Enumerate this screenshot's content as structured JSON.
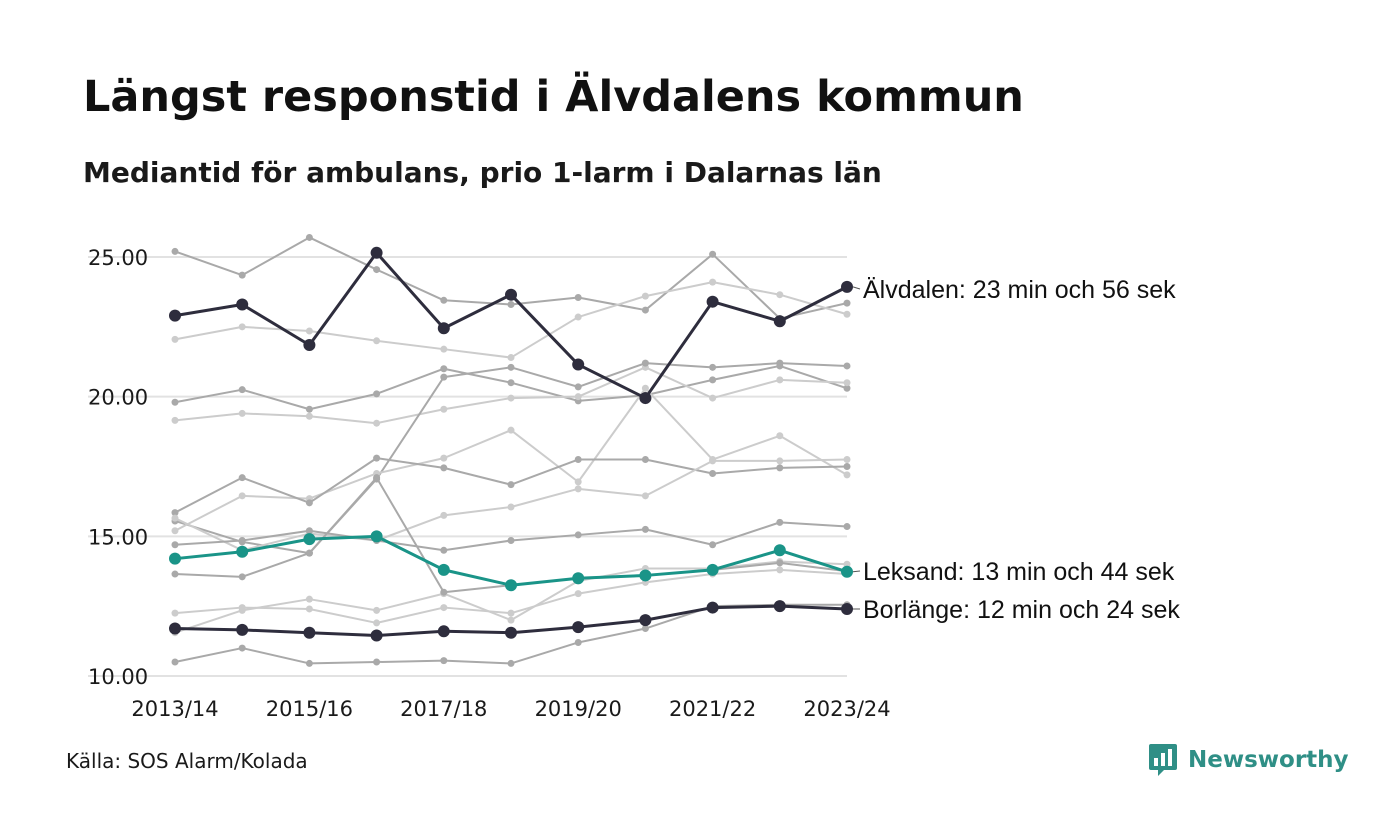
{
  "header": {
    "title": "Längst responstid i Älvdalens kommun",
    "subtitle": "Mediantid för ambulans, prio 1-larm i Dalarnas län"
  },
  "footer": {
    "source": "Källa: SOS Alarm/Kolada",
    "brand": "Newsworthy",
    "brand_icon": "newsworthy-chart-bubble-icon"
  },
  "colors": {
    "highlight_dark": "#2e2d3d",
    "highlight_teal": "#1a9488",
    "background_dark": "#a9a9a9",
    "background_light": "#cccccc",
    "gridline": "#e2e2e2",
    "brand": "#2f8f86"
  },
  "chart_data": {
    "type": "line",
    "x": [
      "2013/14",
      "2014/15",
      "2015/16",
      "2016/17",
      "2017/18",
      "2018/19",
      "2019/20",
      "2020/21",
      "2021/22",
      "2022/23",
      "2023/24"
    ],
    "x_tick_labels": [
      "2013/14",
      "2015/16",
      "2017/18",
      "2019/20",
      "2021/22",
      "2023/24"
    ],
    "y_tick_labels": [
      "10.00",
      "15.00",
      "20.00",
      "25.00"
    ],
    "ylim": [
      10,
      25.6
    ],
    "grid": true,
    "highlighted": [
      {
        "name": "Älvdalen",
        "label": "Älvdalen: 23 min och 56 sek",
        "color": "#2e2d3d",
        "values": [
          22.9,
          23.3,
          21.85,
          25.15,
          22.45,
          23.65,
          21.15,
          19.95,
          23.4,
          22.7,
          23.93
        ]
      },
      {
        "name": "Leksand",
        "label": "Leksand: 13 min och 44 sek",
        "color": "#1a9488",
        "values": [
          14.2,
          14.45,
          14.9,
          15.0,
          13.8,
          13.25,
          13.5,
          13.6,
          13.8,
          14.5,
          13.73
        ]
      },
      {
        "name": "Borlänge",
        "label": "Borlänge: 12 min och 24 sek",
        "color": "#2e2d3d",
        "values": [
          11.7,
          11.65,
          11.55,
          11.45,
          11.6,
          11.55,
          11.75,
          12.0,
          12.45,
          12.5,
          12.4
        ]
      }
    ],
    "other_series": [
      {
        "color": "#a9a9a9",
        "values": [
          25.2,
          24.35,
          25.7,
          24.55,
          23.45,
          23.3,
          23.55,
          23.1,
          25.1,
          22.8,
          23.35
        ]
      },
      {
        "color": "#cccccc",
        "values": [
          22.05,
          22.5,
          22.35,
          22.0,
          21.7,
          21.4,
          22.85,
          23.6,
          24.1,
          23.65,
          22.95
        ]
      },
      {
        "color": "#a9a9a9",
        "values": [
          19.8,
          20.25,
          19.55,
          20.1,
          21.0,
          20.5,
          19.85,
          20.05,
          20.6,
          21.1,
          20.3
        ]
      },
      {
        "color": "#cccccc",
        "values": [
          19.15,
          19.4,
          19.3,
          19.05,
          19.55,
          19.95,
          20.0,
          21.05,
          19.95,
          20.6,
          20.5
        ]
      },
      {
        "color": "#a9a9a9",
        "values": [
          15.55,
          14.8,
          14.4,
          17.05,
          20.7,
          21.05,
          20.35,
          21.2,
          21.05,
          21.2,
          21.1
        ]
      },
      {
        "color": "#cccccc",
        "values": [
          15.2,
          16.45,
          16.35,
          17.25,
          17.8,
          18.8,
          16.95,
          20.3,
          17.75,
          18.6,
          17.2
        ]
      },
      {
        "color": "#a9a9a9",
        "values": [
          15.85,
          17.1,
          16.2,
          17.8,
          17.45,
          16.85,
          17.75,
          17.75,
          17.25,
          17.45,
          17.5
        ]
      },
      {
        "color": "#cccccc",
        "values": [
          15.65,
          14.5,
          15.1,
          14.85,
          15.75,
          16.05,
          16.7,
          16.45,
          17.7,
          17.7,
          17.75
        ]
      },
      {
        "color": "#a9a9a9",
        "values": [
          14.7,
          14.85,
          15.2,
          14.85,
          14.5,
          14.85,
          15.05,
          15.25,
          14.7,
          15.5,
          15.35
        ]
      },
      {
        "color": "#cccccc",
        "values": [
          11.55,
          12.35,
          12.75,
          12.35,
          12.95,
          12.0,
          13.4,
          13.85,
          13.85,
          14.1,
          14.0
        ]
      },
      {
        "color": "#a9a9a9",
        "values": [
          13.65,
          13.55,
          14.4,
          17.1,
          13.0,
          13.25,
          13.5,
          13.6,
          13.8,
          14.05,
          13.75
        ]
      },
      {
        "color": "#cccccc",
        "values": [
          12.25,
          12.45,
          12.4,
          11.9,
          12.45,
          12.25,
          12.95,
          13.35,
          13.65,
          13.8,
          13.65
        ]
      },
      {
        "color": "#a9a9a9",
        "values": [
          10.5,
          11.0,
          10.45,
          10.5,
          10.55,
          10.45,
          11.2,
          11.7,
          12.5,
          12.55,
          12.55
        ]
      }
    ]
  }
}
